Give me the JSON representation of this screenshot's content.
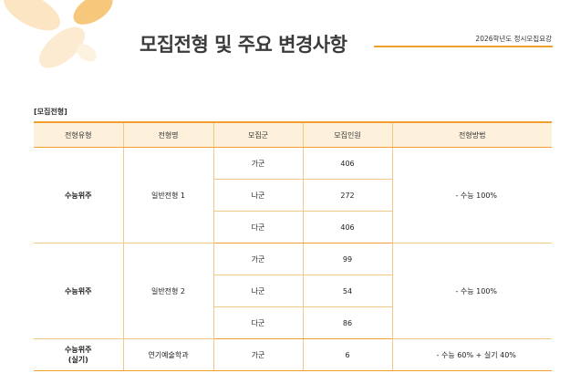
{
  "header": {
    "title": "모집전형 및 주요 변경사항",
    "doc_label": "2026학년도 정시모집요강"
  },
  "section_label": "[모집전형]",
  "table": {
    "columns": [
      "전형유형",
      "전형명",
      "모집군",
      "모집인원",
      "전형방법"
    ],
    "groups": [
      {
        "type": "수능위주",
        "name": "일반전형 1",
        "method": "- 수능 100%",
        "rows": [
          {
            "group": "가군",
            "count": "406"
          },
          {
            "group": "나군",
            "count": "272"
          },
          {
            "group": "다군",
            "count": "406"
          }
        ]
      },
      {
        "type": "수능위주",
        "name": "일반전형 2",
        "method": "- 수능 100%",
        "rows": [
          {
            "group": "가군",
            "count": "99"
          },
          {
            "group": "나군",
            "count": "54"
          },
          {
            "group": "다군",
            "count": "86"
          }
        ]
      },
      {
        "type_line1": "수능위주",
        "type_line2": "(실기)",
        "name": "연기예술학과",
        "method": "- 수능 60% + 실기 40%",
        "rows": [
          {
            "group": "가군",
            "count": "6"
          }
        ]
      }
    ]
  }
}
